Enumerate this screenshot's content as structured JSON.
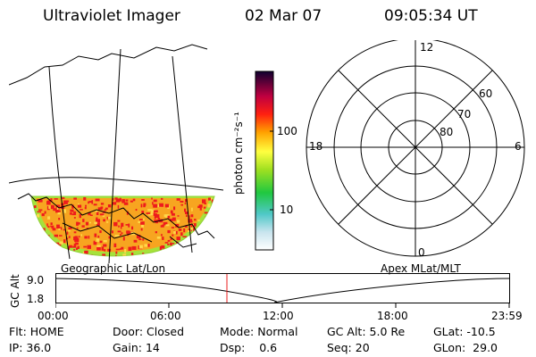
{
  "header": {
    "instrument": "Ultraviolet Imager",
    "date": "02 Mar 07",
    "time": "09:05:34 UT"
  },
  "colorbar": {
    "label": "photon cm⁻²s⁻¹",
    "ticks": [
      "100",
      "10"
    ]
  },
  "polar": {
    "mlt_labels": {
      "top": "12",
      "left": "18",
      "right": "6",
      "bottom": "0"
    },
    "lat_labels": [
      "60",
      "70",
      "80"
    ]
  },
  "orbit": {
    "left_label": "Geographic Lat/Lon",
    "right_label": "Apex MLat/MLT",
    "yaxis_label": "GC Alt",
    "ymax": "9.0",
    "ymin": "1.8",
    "time_ticks": [
      "00:00",
      "06:00",
      "12:00",
      "18:00",
      "23:59"
    ],
    "current_time_fraction": 0.378
  },
  "status": {
    "row1": [
      {
        "key": "Flt:",
        "value": "HOME"
      },
      {
        "key": "Door:",
        "value": "Closed"
      },
      {
        "key": "Mode:",
        "value": "Normal"
      },
      {
        "key": "GC Alt:",
        "value": "5.0 Re"
      },
      {
        "key": "GLat:",
        "value": "-10.5"
      }
    ],
    "row2": [
      {
        "key": "IP:",
        "value": "36.0"
      },
      {
        "key": "Gain:",
        "value": "14"
      },
      {
        "key": "Dsp:",
        "value": "0.6"
      },
      {
        "key": "Seq:",
        "value": "20"
      },
      {
        "key": "GLon:",
        "value": "29.0"
      }
    ]
  },
  "colors": {
    "aurora_base": "#f7a520",
    "aurora_hot": "#ee1c1c",
    "aurora_edge": "#a6e23a",
    "time_marker": "#e81c1c"
  }
}
